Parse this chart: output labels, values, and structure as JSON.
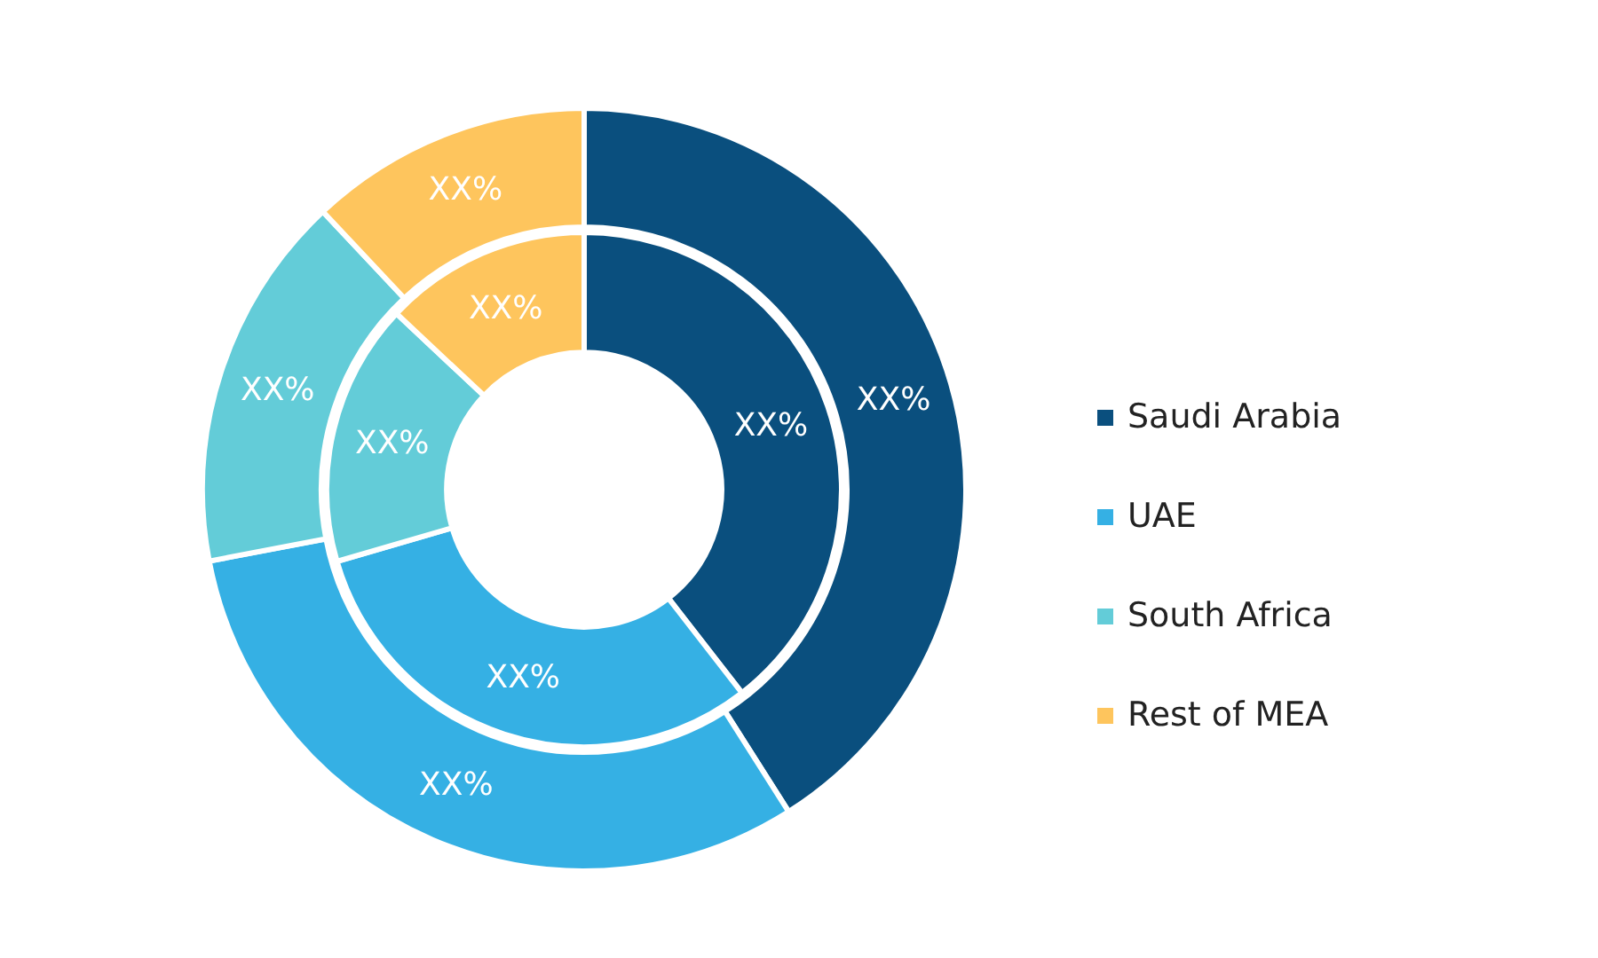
{
  "chart_data": {
    "type": "donut",
    "categories": [
      "Saudi Arabia",
      "UAE",
      "South Africa",
      "Rest of MEA"
    ],
    "colors": [
      "#0a4f7e",
      "#35b0e4",
      "#63ccd8",
      "#fec55d"
    ],
    "series": [
      {
        "values": [
          39.5,
          31,
          16.5,
          13
        ],
        "value_labels": [
          "XX%",
          "XX%",
          "XX%",
          "XX%"
        ]
      },
      {
        "values": [
          41,
          31,
          16,
          12
        ],
        "value_labels": [
          "XX%",
          "XX%",
          "XX%",
          "XX%"
        ]
      }
    ],
    "legend": "right"
  }
}
